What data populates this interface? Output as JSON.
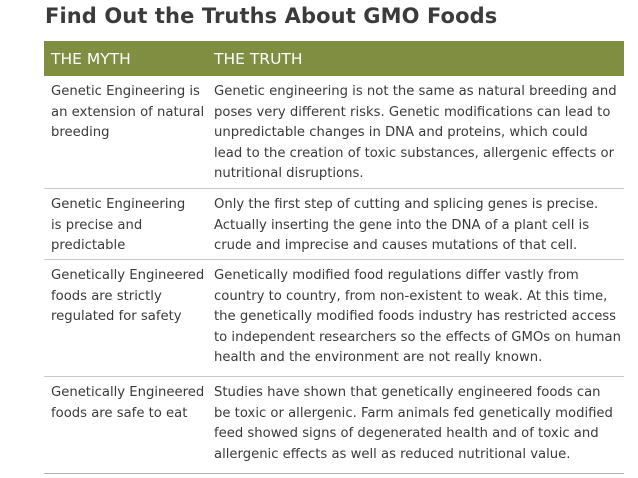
{
  "title": "Find Out the Truths About GMO Foods",
  "table": {
    "headers": {
      "myth": "THE MYTH",
      "truth": "THE TRUTH"
    },
    "rows": [
      {
        "myth": "Genetic Engineering is\nan extension of natural\nbreeding",
        "truth": "Genetic engineering is not the same as natural breeding and\nposes very different risks. Genetic modifications can lead to\nunpredictable changes in DNA and proteins, which could\nlead to the creation of toxic substances, allergenic effects or\nnutritional disruptions."
      },
      {
        "myth": "Genetic Engineering\nis precise and\npredictable",
        "truth": "Only the first step of cutting and splicing genes is precise.\nActually inserting the gene into the DNA of a plant cell is\ncrude and imprecise and causes mutations of that cell."
      },
      {
        "myth": "Genetically Engineered\nfoods are strictly\nregulated for safety",
        "truth": "Genetically modified food regulations differ vastly from\ncountry to country, from non-existent to weak. At this time,\nthe genetically modified foods industry has restricted access\nto independent researchers so the effects of GMOs on human\nhealth and the environment are not really known."
      },
      {
        "myth": "Genetically Engineered\nfoods are safe to eat",
        "truth": "Studies have shown that genetically engineered foods can\nbe toxic or allergenic. Farm animals fed genetically modified\nfeed showed signs of degenerated health and of toxic and\nallergenic effects as well as reduced nutritional value."
      }
    ]
  },
  "colors": {
    "header_background": "#7f8e41",
    "header_text": "#ffffff",
    "body_text": "#3a3a3a",
    "row_divider": "#c8c8c8"
  }
}
